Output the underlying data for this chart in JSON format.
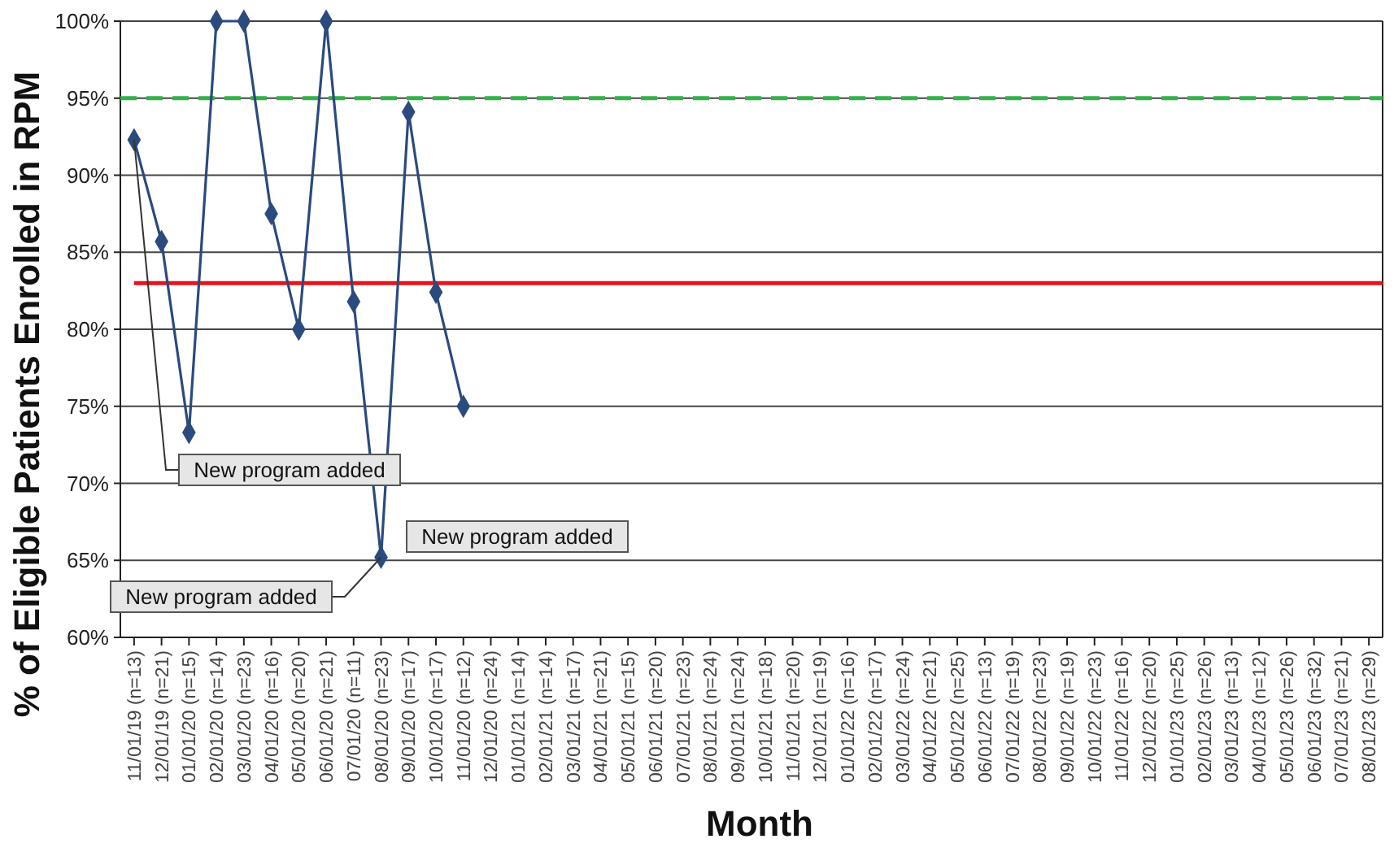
{
  "chart_data": {
    "type": "line",
    "xlabel": "Month",
    "ylabel": "% of Eligible Patients Enrolled in RPM",
    "categories": [
      "11/01/19 (n=13)",
      "12/01/19 (n=21)",
      "01/01/20 (n=15)",
      "02/01/20 (n=14)",
      "03/01/20 (n=23)",
      "04/01/20 (n=16)",
      "05/01/20 (n=20)",
      "06/01/20 (n=21)",
      "07/01/20 (n=11)",
      "08/01/20 (n=23)",
      "09/01/20 (n=17)",
      "10/01/20 (n=17)",
      "11/01/20 (n=12)",
      "12/01/20 (n=24)",
      "01/01/21 (n=14)",
      "02/01/21 (n=14)",
      "03/01/21 (n=17)",
      "04/01/21 (n=21)",
      "05/01/21 (n=15)",
      "06/01/21 (n=20)",
      "07/01/21 (n=23)",
      "08/01/21 (n=24)",
      "09/01/21 (n=24)",
      "10/01/21 (n=18)",
      "11/01/21 (n=20)",
      "12/01/21 (n=19)",
      "01/01/22 (n=16)",
      "02/01/22 (n=17)",
      "03/01/22 (n=24)",
      "04/01/22 (n=21)",
      "05/01/22 (n=25)",
      "06/01/22 (n=13)",
      "07/01/22 (n=19)",
      "08/01/22 (n=23)",
      "09/01/22 (n=19)",
      "10/01/22 (n=23)",
      "11/01/22 (n=16)",
      "12/01/22 (n=20)",
      "01/01/23 (n=25)",
      "02/01/23 (n=26)",
      "03/01/23 (n=13)",
      "04/01/23 (n=12)",
      "05/01/23 (n=26)",
      "06/01/23 (n=32)",
      "07/01/23 (n=21)",
      "08/01/23 (n=29)"
    ],
    "series": [
      {
        "color": "#2b4a7e",
        "values": [
          92.3,
          85.7,
          73.3,
          100,
          100,
          87.5,
          80,
          100,
          81.8,
          65.2,
          94.1,
          82.4,
          75,
          null,
          null,
          null,
          null,
          null,
          null,
          null,
          null,
          null,
          null,
          null,
          null,
          null,
          null,
          null,
          null,
          null,
          null,
          null,
          null,
          null,
          null,
          null,
          null,
          null,
          null,
          null,
          null,
          null,
          null,
          null,
          null,
          null
        ]
      }
    ],
    "ylim": [
      60,
      100
    ],
    "yticks": [
      {
        "value": 60,
        "label": "60%"
      },
      {
        "value": 65,
        "label": "65%"
      },
      {
        "value": 70,
        "label": "70%"
      },
      {
        "value": 75,
        "label": "75%"
      },
      {
        "value": 80,
        "label": "80%"
      },
      {
        "value": 85,
        "label": "85%"
      },
      {
        "value": 90,
        "label": "90%"
      },
      {
        "value": 95,
        "label": "95%"
      },
      {
        "value": 100,
        "label": "100%"
      }
    ],
    "grid": "y",
    "marker": "diamond",
    "line_style": "solid",
    "ref_lines": [
      {
        "axis": "y",
        "value": 95,
        "color": "#33b24a",
        "line_style": "dashed"
      },
      {
        "axis": "y",
        "value": 83,
        "color": "#e8141b",
        "line_style": "solid"
      }
    ],
    "annotations": [
      {
        "text": "New program added",
        "x": "11/01/19 (n=13)",
        "y": 92.3
      },
      {
        "text": "New program added",
        "x": "08/01/20 (n=23)",
        "y": 65.2
      },
      "New program added"
    ]
  }
}
